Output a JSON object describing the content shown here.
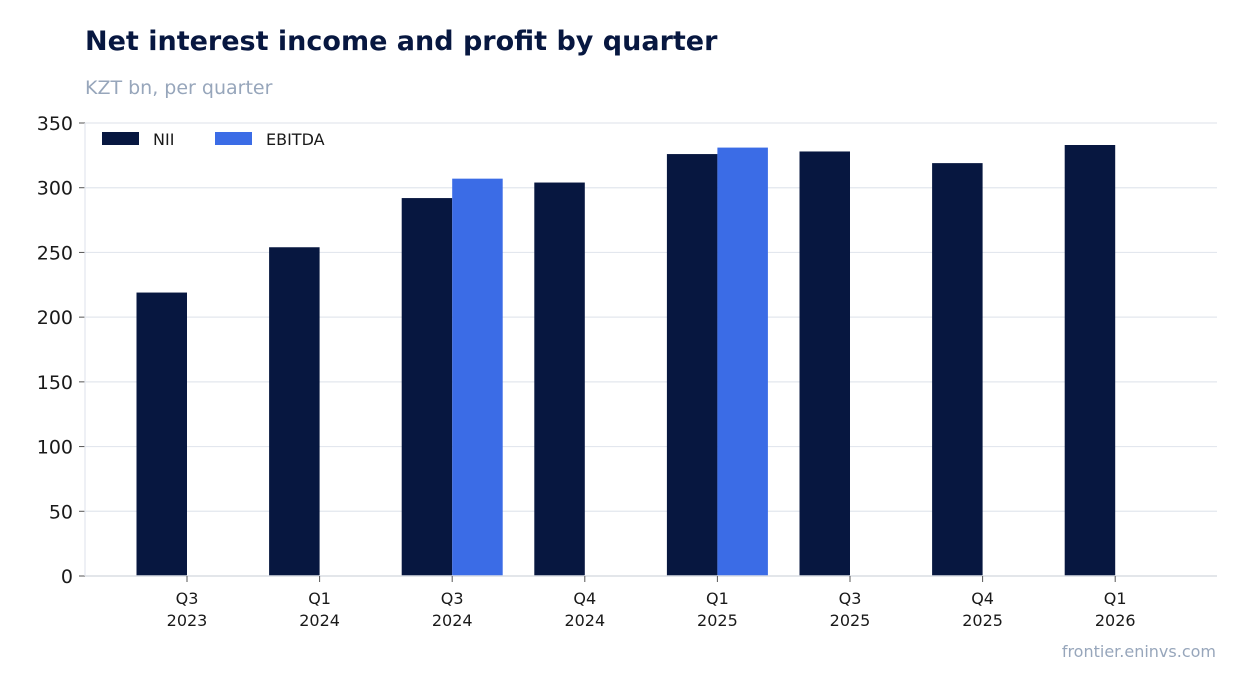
{
  "chart_data": {
    "type": "bar",
    "title": "Net interest income and profit by quarter",
    "subtitle": "KZT bn, per quarter",
    "source": "frontier.eninvs.com",
    "categories": [
      [
        "Q3",
        "2023"
      ],
      [
        "Q1",
        "2024"
      ],
      [
        "Q3",
        "2024"
      ],
      [
        "Q4",
        "2024"
      ],
      [
        "Q1",
        "2025"
      ],
      [
        "Q3",
        "2025"
      ],
      [
        "Q4",
        "2025"
      ],
      [
        "Q1",
        "2026"
      ]
    ],
    "series": [
      {
        "name": "NII",
        "color": "#071740",
        "values": [
          219,
          254,
          292,
          304,
          326,
          328,
          319,
          333
        ]
      },
      {
        "name": "EBITDA",
        "color": "#3b6ce6",
        "values": [
          null,
          null,
          307,
          null,
          331,
          null,
          null,
          null
        ]
      }
    ],
    "ylim": [
      0,
      350
    ],
    "yticks": [
      0,
      50,
      100,
      150,
      200,
      250,
      300,
      350
    ],
    "grid": true,
    "legend": "top-left"
  }
}
